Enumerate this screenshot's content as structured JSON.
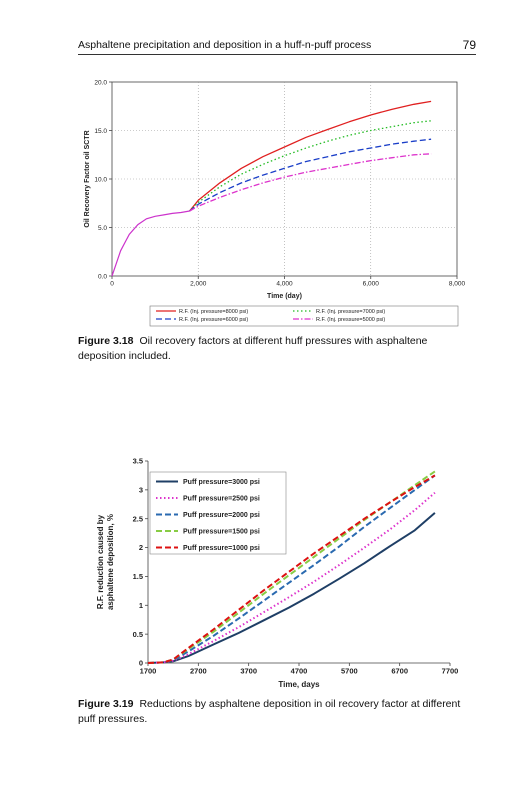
{
  "header": {
    "title": "Asphaltene precipitation and deposition in a huff-n-puff process",
    "page_number": "79"
  },
  "figures": [
    {
      "label": "Figure 3.18",
      "caption": "Oil recovery factors at different huff pressures with asphaltene deposition included."
    },
    {
      "label": "Figure 3.19",
      "caption": "Reductions by asphaltene deposition in oil recovery factor at different puff pressures."
    }
  ],
  "chart_data": [
    {
      "type": "line",
      "title": "",
      "xlabel": "Time (day)",
      "ylabel": "Oil Recovery Factor oil SCTR",
      "xlim": [
        0,
        8000
      ],
      "ylim": [
        0,
        20
      ],
      "xticks": [
        0,
        2000,
        4000,
        6000,
        8000
      ],
      "xtick_labels": [
        "0",
        "2,000",
        "4,000",
        "6,000",
        "8,000"
      ],
      "yticks": [
        0,
        5,
        10,
        15,
        20
      ],
      "ytick_labels": [
        "0.0",
        "5.0",
        "10.0",
        "15.0",
        "20.0"
      ],
      "grid": true,
      "legend_position": "bottom",
      "shared_x": [
        0,
        100,
        200,
        400,
        600,
        800,
        1000,
        1200,
        1400,
        1600,
        1800
      ],
      "shared_values": [
        0,
        1.3,
        2.6,
        4.3,
        5.3,
        5.9,
        6.15,
        6.3,
        6.45,
        6.55,
        6.7
      ],
      "series": [
        {
          "name": "R.F. (Inj. pressure=8000 psi)",
          "color": "#e02020",
          "dash": "solid",
          "x": [
            1800,
            2000,
            2500,
            3000,
            3500,
            4000,
            4500,
            5000,
            5500,
            6000,
            6500,
            7000,
            7400
          ],
          "values": [
            6.7,
            7.8,
            9.6,
            11.1,
            12.3,
            13.3,
            14.3,
            15.1,
            15.9,
            16.6,
            17.2,
            17.7,
            18.0
          ]
        },
        {
          "name": "R.F. (Inj. pressure=7000 psi)",
          "color": "#22bb22",
          "dash": "dotted",
          "x": [
            1800,
            2000,
            2500,
            3000,
            3500,
            4000,
            4500,
            5000,
            5500,
            6000,
            6500,
            7000,
            7400
          ],
          "values": [
            6.7,
            7.6,
            9.2,
            10.5,
            11.5,
            12.4,
            13.2,
            13.9,
            14.5,
            15.0,
            15.4,
            15.8,
            16.0
          ]
        },
        {
          "name": "R.F. (Inj. pressure=6000 psi)",
          "color": "#1a3ec8",
          "dash": "dashed",
          "x": [
            1800,
            2000,
            2500,
            3000,
            3500,
            4000,
            4500,
            5000,
            5500,
            6000,
            6500,
            7000,
            7400
          ],
          "values": [
            6.7,
            7.4,
            8.6,
            9.6,
            10.4,
            11.1,
            11.8,
            12.3,
            12.8,
            13.2,
            13.6,
            13.9,
            14.1
          ]
        },
        {
          "name": "R.F. (Inj. pressure=5000 psi)",
          "color": "#dd33cc",
          "dash": "dashdot",
          "x": [
            1800,
            2000,
            2500,
            3000,
            3500,
            4000,
            4500,
            5000,
            5500,
            6000,
            6500,
            7000,
            7400
          ],
          "values": [
            6.7,
            7.2,
            8.1,
            8.9,
            9.6,
            10.2,
            10.7,
            11.1,
            11.5,
            11.9,
            12.2,
            12.5,
            12.6
          ]
        }
      ]
    },
    {
      "type": "line",
      "title": "",
      "xlabel": "Time, days",
      "ylabel": "R.F. reduction caused by asphaltene deposition, %",
      "xlim": [
        1700,
        7700
      ],
      "ylim": [
        0,
        3.5
      ],
      "xticks": [
        1700,
        2700,
        3700,
        4700,
        5700,
        6700,
        7700
      ],
      "xtick_labels": [
        "1700",
        "2700",
        "3700",
        "4700",
        "5700",
        "6700",
        "7700"
      ],
      "yticks": [
        0,
        0.5,
        1,
        1.5,
        2,
        2.5,
        3,
        3.5
      ],
      "ytick_labels": [
        "0",
        "0.5",
        "1",
        "1.5",
        "2",
        "2.5",
        "3",
        "3.5"
      ],
      "grid": false,
      "legend_position": "top-left",
      "series": [
        {
          "name": "Puff pressure=3000 psi",
          "color": "#1f3f66",
          "dash": "solid",
          "x": [
            1700,
            2000,
            2200,
            2500,
            3000,
            3500,
            4000,
            4500,
            5000,
            5500,
            6000,
            6500,
            7000,
            7400
          ],
          "values": [
            0,
            0.01,
            0.03,
            0.12,
            0.32,
            0.52,
            0.74,
            0.96,
            1.2,
            1.46,
            1.73,
            2.02,
            2.3,
            2.6
          ]
        },
        {
          "name": "Puff pressure=2500 psi",
          "color": "#dd33cc",
          "dash": "dotted",
          "x": [
            1700,
            2000,
            2200,
            2500,
            3000,
            3500,
            4000,
            4500,
            5000,
            5500,
            6000,
            6500,
            7000,
            7400
          ],
          "values": [
            0,
            0.01,
            0.04,
            0.15,
            0.38,
            0.62,
            0.88,
            1.14,
            1.41,
            1.7,
            2.0,
            2.31,
            2.65,
            2.95
          ]
        },
        {
          "name": "Puff pressure=2000 psi",
          "color": "#2a6ab0",
          "dash": "dashed",
          "x": [
            1700,
            2000,
            2200,
            2500,
            3000,
            3500,
            4000,
            4500,
            5000,
            5500,
            6000,
            6500,
            7000,
            7400
          ],
          "values": [
            0,
            0.01,
            0.05,
            0.2,
            0.47,
            0.77,
            1.08,
            1.39,
            1.7,
            2.02,
            2.36,
            2.68,
            3.0,
            3.25
          ]
        },
        {
          "name": "Puff pressure=1500 psi",
          "color": "#88cc44",
          "dash": "dashed",
          "x": [
            1700,
            2000,
            2200,
            2500,
            3000,
            3500,
            4000,
            4500,
            5000,
            5500,
            6000,
            6500,
            7000,
            7400
          ],
          "values": [
            0,
            0.01,
            0.06,
            0.24,
            0.54,
            0.87,
            1.2,
            1.52,
            1.84,
            2.16,
            2.48,
            2.78,
            3.08,
            3.32
          ]
        },
        {
          "name": "Puff pressure=1000 psi",
          "color": "#dd1111",
          "dash": "dashed",
          "x": [
            1700,
            2000,
            2200,
            2500,
            3000,
            3500,
            4000,
            4500,
            5000,
            5500,
            6000,
            6500,
            7000,
            7400
          ],
          "values": [
            0,
            0.01,
            0.06,
            0.26,
            0.58,
            0.92,
            1.26,
            1.58,
            1.9,
            2.2,
            2.5,
            2.78,
            3.05,
            3.25
          ]
        }
      ]
    }
  ]
}
